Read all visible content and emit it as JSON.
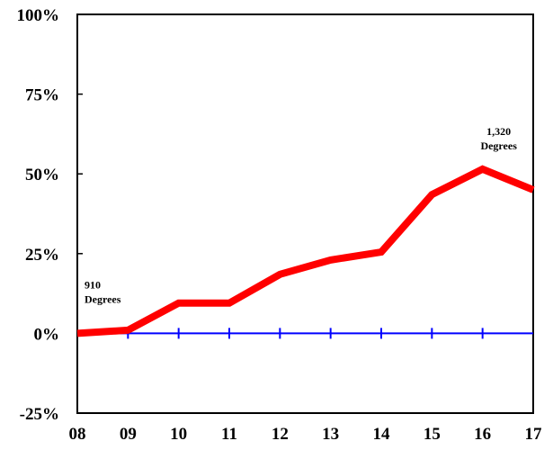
{
  "chart_data": {
    "type": "line",
    "title": "",
    "xlabel": "",
    "ylabel": "",
    "categories": [
      "08",
      "09",
      "10",
      "11",
      "12",
      "13",
      "14",
      "15",
      "16",
      "17"
    ],
    "y_tick_labels": [
      "100%",
      "75%",
      "50%",
      "25%",
      "0%",
      "-25%"
    ],
    "y_ticks": [
      100,
      75,
      50,
      25,
      0,
      -25
    ],
    "ylim": [
      -25,
      100
    ],
    "grid": false,
    "legend": "none",
    "series": [
      {
        "color": "#ff0000",
        "values": [
          0,
          1,
          9.5,
          9.5,
          18.5,
          23,
          25.5,
          43.5,
          51.5,
          45
        ]
      }
    ],
    "zero_line": {
      "color": "#0000ff",
      "value": 0
    },
    "annotations": [
      {
        "lines": [
          "910",
          "Degrees"
        ],
        "category": "08",
        "value": 0
      },
      {
        "lines": [
          "1,320",
          "Degrees"
        ],
        "category": "16",
        "value": 51.5
      }
    ]
  }
}
